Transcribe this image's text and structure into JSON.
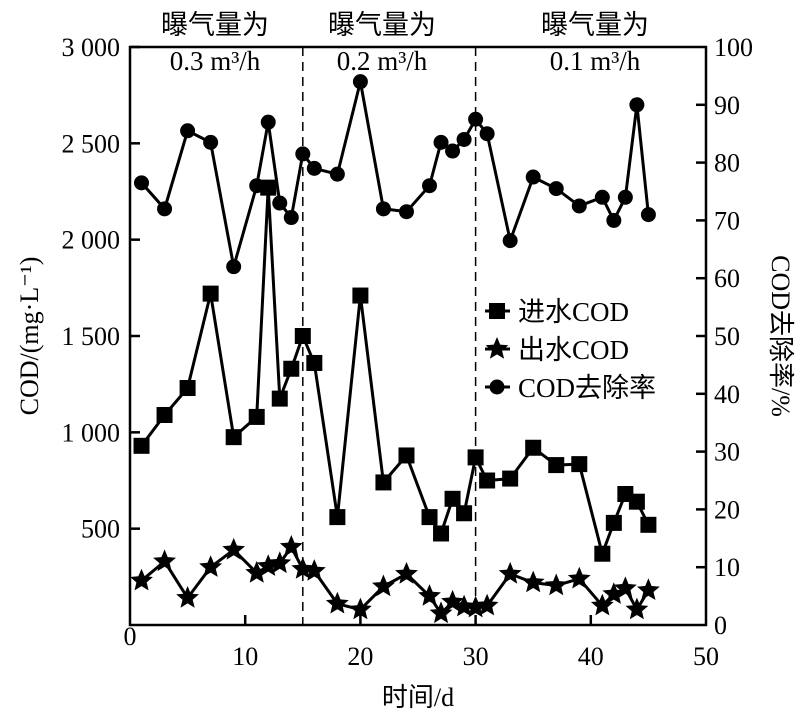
{
  "chart_data": {
    "type": "line",
    "xlabel": "时间/d",
    "ylabel": "COD/(mg·L⁻¹)",
    "y2label": "COD去除率/%",
    "xlim": [
      0,
      50
    ],
    "ylim": [
      0,
      3000
    ],
    "y2lim": [
      0,
      100
    ],
    "xticks": [
      "0",
      "10",
      "20",
      "30",
      "40",
      "50"
    ],
    "yticks": [
      "0",
      "500",
      "1 000",
      "1 500",
      "2 000",
      "2 500",
      "3 000"
    ],
    "y2ticks": [
      "0",
      "10",
      "20",
      "30",
      "40",
      "50",
      "60",
      "70",
      "80",
      "90",
      "100"
    ],
    "grid": false,
    "legend_position": "center-right",
    "x": [
      1,
      3,
      5,
      7,
      9,
      11,
      12,
      13,
      14,
      15,
      16,
      18,
      20,
      22,
      24,
      26,
      27,
      28,
      29,
      30,
      31,
      33,
      35,
      37,
      39,
      41,
      42,
      43,
      44,
      45
    ],
    "series": [
      {
        "name": "进水COD",
        "axis": "left",
        "marker": "square",
        "values": [
          930,
          1090,
          1230,
          1720,
          975,
          1080,
          2270,
          1175,
          1330,
          1500,
          1360,
          560,
          1710,
          740,
          880,
          560,
          475,
          655,
          580,
          870,
          750,
          760,
          920,
          830,
          835,
          370,
          530,
          680,
          640,
          520
        ]
      },
      {
        "name": "出水COD",
        "axis": "left",
        "marker": "star",
        "values": [
          230,
          330,
          140,
          300,
          390,
          270,
          305,
          320,
          405,
          290,
          280,
          110,
          80,
          200,
          265,
          150,
          60,
          120,
          95,
          90,
          100,
          265,
          220,
          205,
          240,
          100,
          160,
          190,
          80,
          180
        ]
      },
      {
        "name": "COD去除率",
        "axis": "right",
        "marker": "circle",
        "values": [
          76.5,
          72,
          85.5,
          83.5,
          62,
          76,
          87,
          73,
          70.5,
          81.5,
          79,
          78,
          94,
          72,
          71.5,
          76,
          83.5,
          82,
          84,
          87.5,
          85,
          66.5,
          77.5,
          75.5,
          72.5,
          74,
          70,
          74,
          90,
          71
        ]
      }
    ],
    "dividers": [
      15,
      30
    ],
    "annotations": [
      {
        "line1": "曝气量为",
        "line2": "0.3 m³/h"
      },
      {
        "line1": "曝气量为",
        "line2": "0.2 m³/h"
      },
      {
        "line1": "曝气量为",
        "line2": "0.1 m³/h"
      }
    ]
  }
}
